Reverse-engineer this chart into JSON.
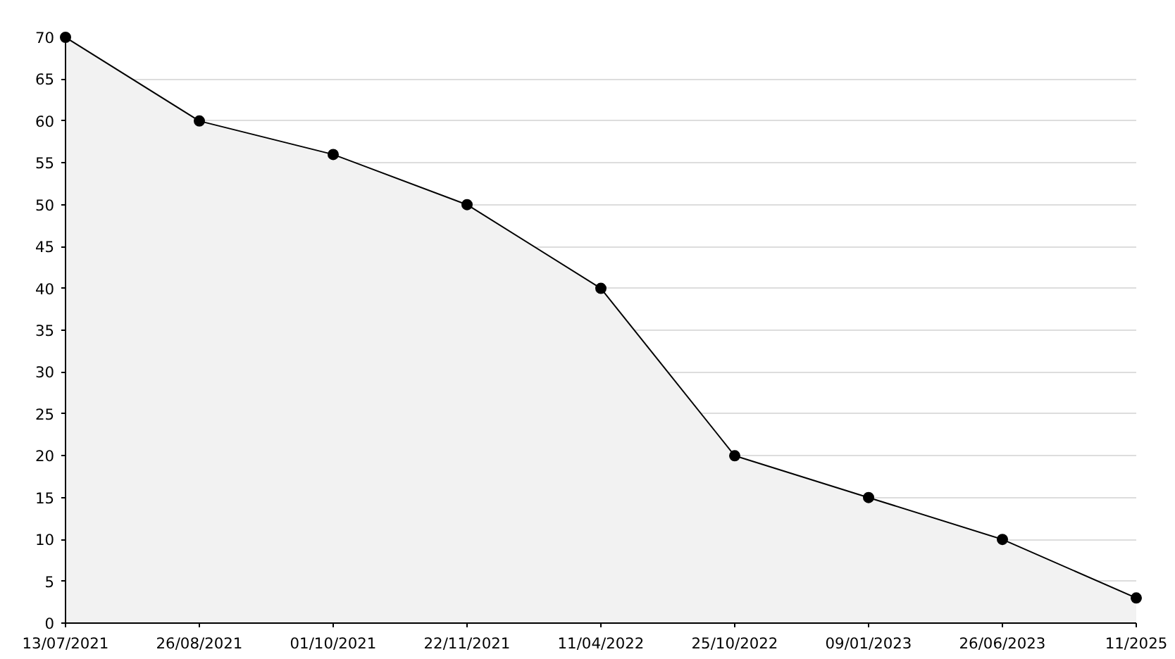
{
  "chart_data": {
    "type": "area",
    "categories": [
      "13/07/2021",
      "26/08/2021",
      "01/10/2021",
      "22/11/2021",
      "11/04/2022",
      "25/10/2022",
      "09/01/2023",
      "26/06/2023",
      "11/2025"
    ],
    "series": [
      {
        "color": "#000000",
        "values": [
          70,
          60,
          56,
          50,
          40,
          20,
          15,
          10,
          3
        ]
      }
    ],
    "ylim": [
      0,
      70
    ],
    "yticks": [
      0,
      5,
      10,
      15,
      20,
      25,
      30,
      35,
      40,
      45,
      50,
      55,
      60,
      65,
      70
    ],
    "grid": "y",
    "marker": "circle",
    "line_style": "solid"
  }
}
